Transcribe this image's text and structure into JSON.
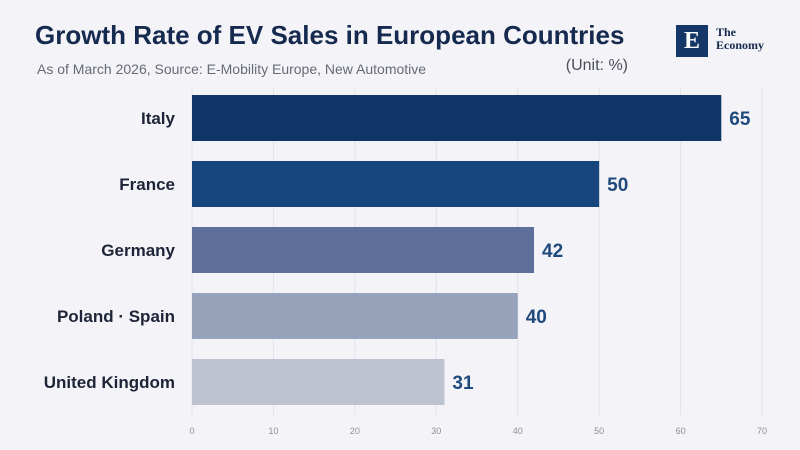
{
  "header": {
    "title": "Growth Rate of EV Sales in European Countries",
    "subtitle": "As of March 2026, Source: E-Mobility Europe, New Automotive",
    "unit": "(Unit: %)"
  },
  "logo": {
    "mark": "E",
    "line1": "The",
    "line2": "Economy"
  },
  "chart_data": {
    "type": "bar",
    "orientation": "horizontal",
    "title": "Growth Rate of EV Sales in European Countries",
    "subtitle": "As of March 2026, Source: E-Mobility Europe, New Automotive",
    "unit": "(Unit: %)",
    "categories": [
      "Italy",
      "France",
      "Germany",
      "Poland · Spain",
      "United Kingdom"
    ],
    "values": [
      65,
      50,
      42,
      40,
      31
    ],
    "bar_colors": [
      "#0f3566",
      "#17457d",
      "#5e6f9b",
      "#97a2bb",
      "#bcc2d0"
    ],
    "xlim": [
      0,
      70
    ],
    "xticks": [
      0,
      10,
      20,
      30,
      40,
      50,
      60,
      70
    ],
    "grid": true,
    "value_label_color": "#1f4a7c"
  }
}
